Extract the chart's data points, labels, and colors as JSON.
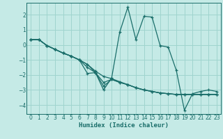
{
  "xlabel": "Humidex (Indice chaleur)",
  "xlim": [
    -0.5,
    23.5
  ],
  "ylim": [
    -4.6,
    2.8
  ],
  "xticks": [
    0,
    1,
    2,
    3,
    4,
    5,
    6,
    7,
    8,
    9,
    10,
    11,
    12,
    13,
    14,
    15,
    16,
    17,
    18,
    19,
    20,
    21,
    22,
    23
  ],
  "yticks": [
    -4,
    -3,
    -2,
    -1,
    0,
    1,
    2
  ],
  "background_color": "#c5eae6",
  "grid_color": "#9fd4ce",
  "line_color": "#1a6e6a",
  "lines": [
    {
      "x": [
        0,
        1,
        2,
        3,
        4,
        5,
        6,
        7,
        8,
        9,
        10,
        11,
        12,
        13,
        14,
        15,
        16,
        17,
        18,
        19,
        20,
        21,
        22,
        23
      ],
      "y": [
        0.35,
        0.35,
        -0.05,
        -0.3,
        -0.55,
        -0.75,
        -1.0,
        -1.3,
        -1.75,
        -2.1,
        -2.25,
        -2.45,
        -2.65,
        -2.85,
        -3.0,
        -3.1,
        -3.2,
        -3.25,
        -3.3,
        -3.3,
        -3.3,
        -3.3,
        -3.3,
        -3.3
      ]
    },
    {
      "x": [
        0,
        1,
        2,
        3,
        4,
        5,
        6,
        7,
        8,
        9,
        10,
        11,
        12,
        13,
        14,
        15,
        16,
        17,
        18,
        19,
        20,
        21,
        22,
        23
      ],
      "y": [
        0.35,
        0.35,
        -0.05,
        -0.3,
        -0.55,
        -0.75,
        -1.0,
        -1.9,
        -1.85,
        -3.0,
        -2.2,
        0.85,
        2.5,
        0.35,
        1.9,
        1.85,
        -0.05,
        -0.15,
        -1.7,
        -4.35,
        -3.25,
        -3.1,
        -3.0,
        -3.1
      ]
    },
    {
      "x": [
        0,
        1,
        2,
        3,
        4,
        5,
        6,
        7,
        8,
        9,
        10,
        11,
        12,
        13,
        14,
        15,
        16,
        17,
        18,
        19,
        20,
        21,
        22,
        23
      ],
      "y": [
        0.35,
        0.35,
        -0.05,
        -0.3,
        -0.55,
        -0.75,
        -1.0,
        -1.3,
        -1.85,
        -2.5,
        -2.3,
        -2.5,
        -2.65,
        -2.85,
        -3.0,
        -3.1,
        -3.2,
        -3.25,
        -3.3,
        -3.3,
        -3.3,
        -3.3,
        -3.3,
        -3.3
      ]
    },
    {
      "x": [
        0,
        1,
        2,
        3,
        4,
        5,
        6,
        7,
        8,
        9,
        10,
        11,
        12,
        13,
        14,
        15,
        16,
        17,
        18,
        19,
        20,
        21,
        22,
        23
      ],
      "y": [
        0.35,
        0.35,
        -0.05,
        -0.3,
        -0.55,
        -0.75,
        -1.0,
        -1.5,
        -1.85,
        -2.75,
        -2.3,
        -2.5,
        -2.65,
        -2.85,
        -3.0,
        -3.1,
        -3.2,
        -3.25,
        -3.3,
        -3.3,
        -3.3,
        -3.3,
        -3.3,
        -3.3
      ]
    }
  ]
}
